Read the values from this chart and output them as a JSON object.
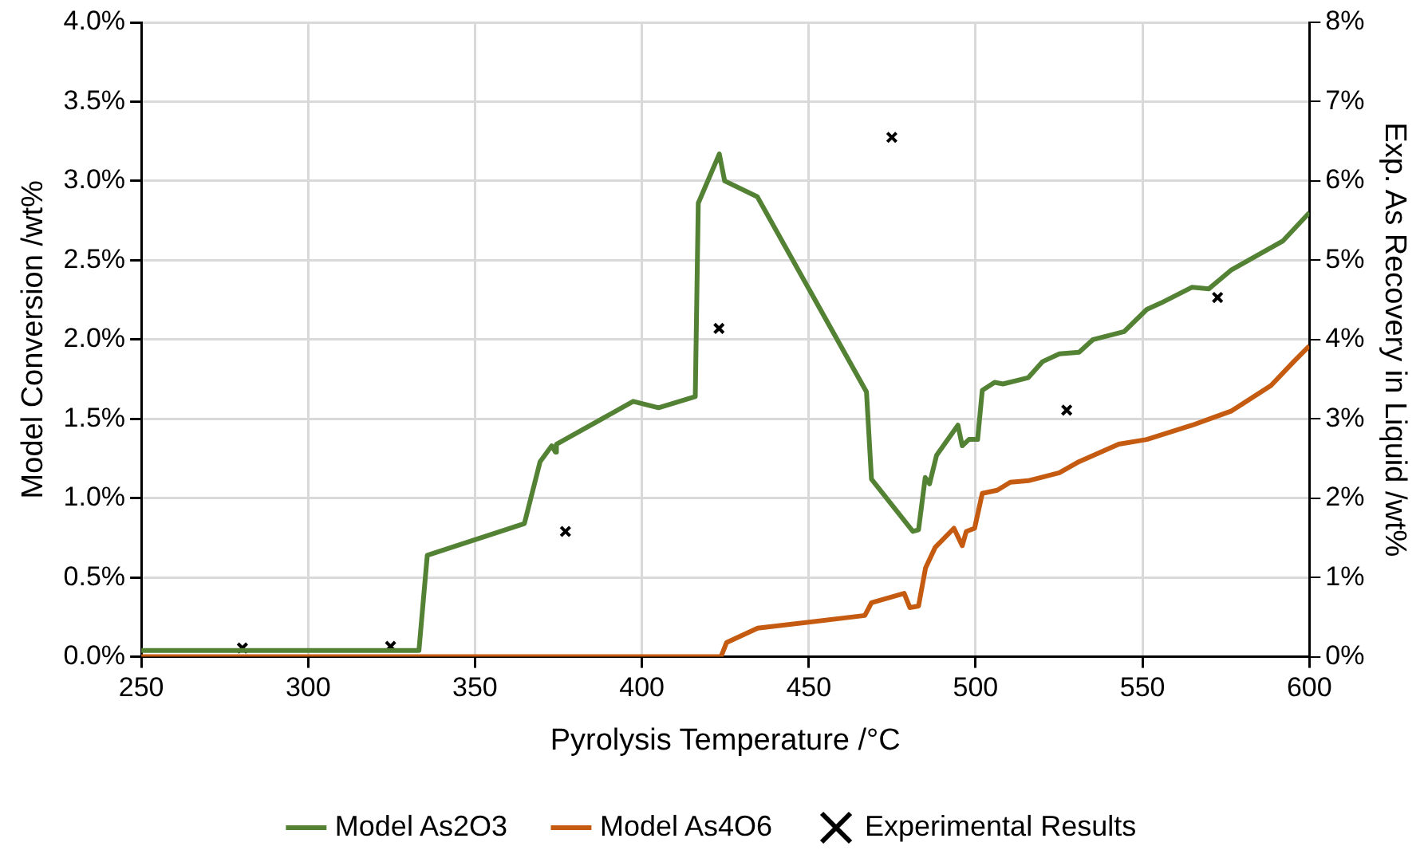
{
  "chart_data": {
    "type": "line",
    "xlabel": "Pyrolysis Temperature /°C",
    "ylabel": "Model Conversion /wt%",
    "y2label": "Exp. As Recovery in Liquid /wt%",
    "xlim": [
      250,
      600
    ],
    "xticks": [
      250,
      300,
      350,
      400,
      450,
      500,
      550,
      600
    ],
    "ylim": [
      0,
      4
    ],
    "yticks": [
      {
        "value": 0,
        "label": "0.0%"
      },
      {
        "value": 0.5,
        "label": "0.5%"
      },
      {
        "value": 1,
        "label": "1.0%"
      },
      {
        "value": 1.5,
        "label": "1.5%"
      },
      {
        "value": 2,
        "label": "2.0%"
      },
      {
        "value": 2.5,
        "label": "2.5%"
      },
      {
        "value": 3,
        "label": "3.0%"
      },
      {
        "value": 3.5,
        "label": "3.5%"
      },
      {
        "value": 4,
        "label": "4.0%"
      }
    ],
    "y2lim": [
      0,
      8
    ],
    "y2ticks": [
      {
        "value": 0,
        "label": "0%"
      },
      {
        "value": 1,
        "label": "1%"
      },
      {
        "value": 2,
        "label": "2%"
      },
      {
        "value": 3,
        "label": "3%"
      },
      {
        "value": 4,
        "label": "4%"
      },
      {
        "value": 5,
        "label": "5%"
      },
      {
        "value": 6,
        "label": "6%"
      },
      {
        "value": 7,
        "label": "7%"
      },
      {
        "value": 8,
        "label": "8%"
      }
    ],
    "grid": true,
    "legend": "bottom",
    "series": [
      {
        "name": "Model As2O3",
        "type": "line",
        "color": "#548235",
        "marker": "none",
        "x": [
          250,
          333.2,
          335.7,
          364.8,
          369.5,
          373,
          374.1,
          374.4,
          397.4,
          405,
          416,
          416.9,
          423.2,
          424.8,
          434.6,
          467.3,
          468.8,
          481.2,
          482.9,
          484.9,
          486.2,
          488.3,
          494.7,
          496,
          498,
          500.6,
          502,
          505.7,
          508.2,
          515.8,
          520,
          525.1,
          531,
          535.2,
          544.5,
          551.3,
          555.5,
          564.9,
          569.9,
          576.7,
          592,
          600
        ],
        "values": [
          0.04,
          0.04,
          0.64,
          0.84,
          1.23,
          1.33,
          1.29,
          1.34,
          1.61,
          1.57,
          1.64,
          2.86,
          3.17,
          3.0,
          2.9,
          1.67,
          1.12,
          0.79,
          0.8,
          1.13,
          1.09,
          1.27,
          1.46,
          1.33,
          1.37,
          1.37,
          1.68,
          1.73,
          1.72,
          1.76,
          1.86,
          1.91,
          1.92,
          2.0,
          2.05,
          2.19,
          2.23,
          2.33,
          2.32,
          2.44,
          2.62,
          2.8
        ]
      },
      {
        "name": "Model As4O6",
        "type": "line",
        "color": "#c55a11",
        "marker": "none",
        "x": [
          250,
          423.7,
          425.4,
          434.7,
          466.8,
          468.8,
          478.6,
          480.3,
          482.9,
          485,
          487.9,
          493.5,
          496,
          497.2,
          499.7,
          502,
          506.5,
          510.4,
          515.8,
          525.1,
          531,
          542.9,
          551.3,
          564.9,
          576.7,
          588.5,
          595.3,
          600
        ],
        "values": [
          0,
          0,
          0.09,
          0.18,
          0.26,
          0.34,
          0.4,
          0.31,
          0.32,
          0.56,
          0.69,
          0.81,
          0.7,
          0.79,
          0.81,
          1.03,
          1.05,
          1.1,
          1.11,
          1.16,
          1.23,
          1.34,
          1.37,
          1.46,
          1.55,
          1.71,
          1.86,
          1.96
        ]
      },
      {
        "name": "Experimental Results",
        "type": "scatter",
        "axis": "y2",
        "color": "#000000",
        "marker": "cross",
        "x": [
          280.3,
          324.7,
          377.1,
          423.1,
          474.9,
          527.3,
          572.5
        ],
        "values": [
          0.11,
          0.13,
          1.58,
          4.14,
          6.55,
          3.11,
          4.53
        ]
      }
    ]
  }
}
